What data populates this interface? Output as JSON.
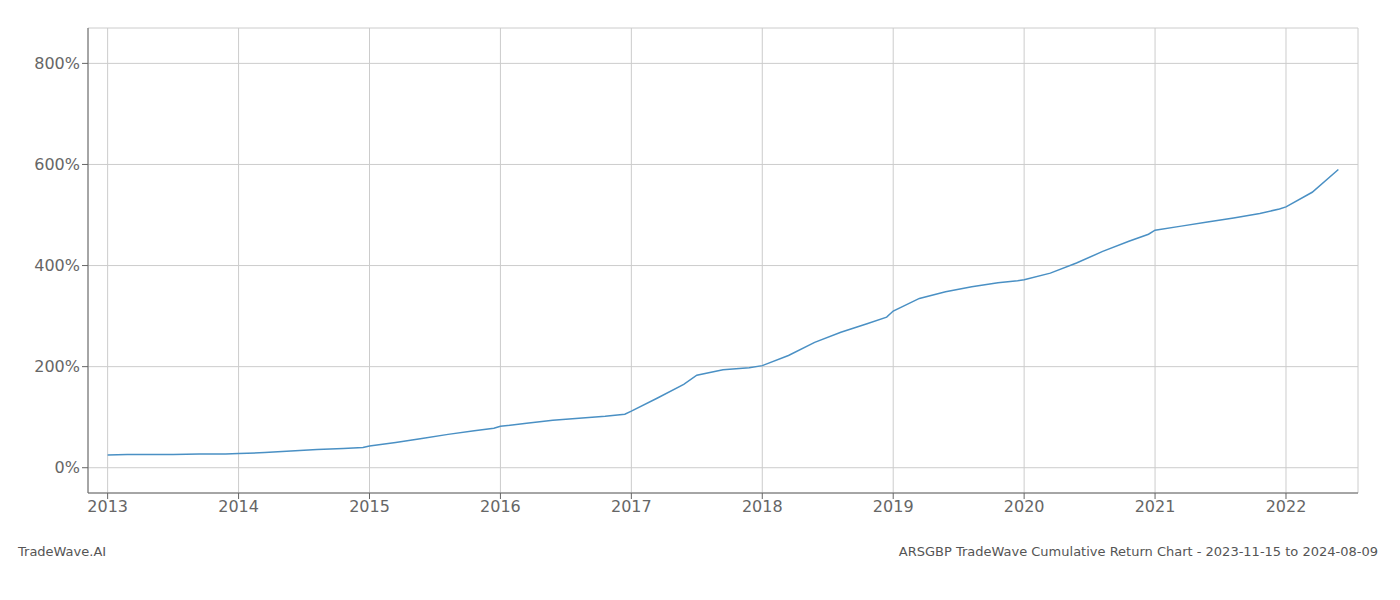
{
  "chart_data": {
    "type": "line",
    "title": "ARSGBP TradeWave Cumulative Return Chart - 2023-11-15 to 2024-08-09",
    "annotations": [
      "TradeWave.AI"
    ],
    "color": "#4a90c4",
    "grid": true,
    "xlim": [
      2012.85,
      2022.55
    ],
    "ylim": [
      -50,
      870
    ],
    "xticks": [
      2013,
      2014,
      2015,
      2016,
      2017,
      2018,
      2019,
      2020,
      2021,
      2022
    ],
    "yticks": [
      {
        "value": 0,
        "label": "0%"
      },
      {
        "value": 200,
        "label": "200%"
      },
      {
        "value": 400,
        "label": "400%"
      },
      {
        "value": 600,
        "label": "600%"
      },
      {
        "value": 800,
        "label": "800%"
      }
    ],
    "x": [
      2013.0,
      2013.15,
      2013.3,
      2013.5,
      2013.7,
      2013.9,
      2014.0,
      2014.2,
      2014.4,
      2014.6,
      2014.8,
      2014.95,
      2015.0,
      2015.2,
      2015.4,
      2015.6,
      2015.8,
      2015.95,
      2016.0,
      2016.2,
      2016.4,
      2016.6,
      2016.8,
      2016.95,
      2017.0,
      2017.2,
      2017.4,
      2017.5,
      2017.7,
      2017.9,
      2018.0,
      2018.2,
      2018.4,
      2018.6,
      2018.8,
      2018.95,
      2019.0,
      2019.2,
      2019.4,
      2019.6,
      2019.8,
      2019.95,
      2020.0,
      2020.2,
      2020.4,
      2020.6,
      2020.8,
      2020.95,
      2021.0,
      2021.2,
      2021.4,
      2021.6,
      2021.8,
      2021.95,
      2022.0,
      2022.2,
      2022.4
    ],
    "values": [
      25,
      26,
      26,
      26,
      27,
      27,
      28,
      30,
      33,
      36,
      38,
      40,
      43,
      50,
      58,
      66,
      73,
      78,
      82,
      88,
      94,
      98,
      102,
      106,
      112,
      138,
      165,
      183,
      194,
      198,
      202,
      222,
      248,
      268,
      285,
      298,
      310,
      335,
      348,
      358,
      366,
      370,
      372,
      385,
      405,
      428,
      448,
      462,
      470,
      478,
      486,
      494,
      503,
      512,
      516,
      545,
      590
    ]
  }
}
